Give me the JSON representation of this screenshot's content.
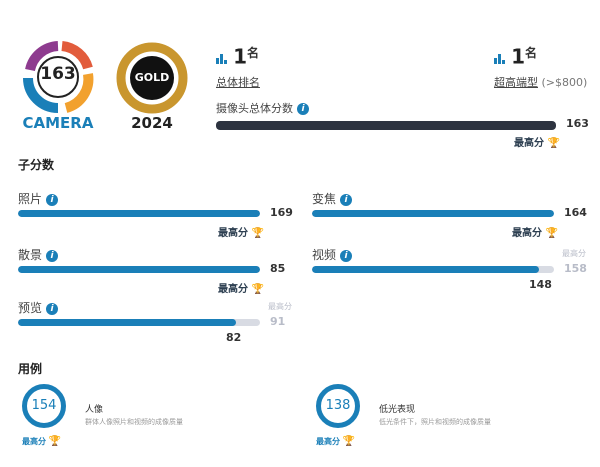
{
  "badge": {
    "score": "163",
    "label": "CAMERA",
    "award": "GOLD",
    "year": "2024"
  },
  "ranks": [
    {
      "rank": "1",
      "suffix": "名",
      "label": "总体排名",
      "extra": ""
    },
    {
      "rank": "1",
      "suffix": "名",
      "label": "超高端型",
      "extra": "(>$800)"
    }
  ],
  "overall": {
    "label": "摄像头总体分数",
    "value": "163",
    "best_label": "最高分",
    "fraction": 1.0
  },
  "subscores_title": "子分数",
  "subscores": [
    {
      "label": "照片",
      "value": "169",
      "best_label": "最高分",
      "fraction": 1.0
    },
    {
      "label": "变焦",
      "value": "164",
      "best_label": "最高分",
      "fraction": 1.0
    },
    {
      "label": "散景",
      "value": "85",
      "best_label": "最高分",
      "fraction": 1.0
    },
    {
      "label": "视频",
      "value": "148",
      "best_label": "最高分",
      "best_value": "158",
      "fraction": 0.937
    },
    {
      "label": "预览",
      "value": "82",
      "best_label": "最高分",
      "best_value": "91",
      "fraction": 0.901
    }
  ],
  "usecases_title": "用例",
  "usecases": [
    {
      "score": "154",
      "title": "人像",
      "desc": "群体人像照片和视频的成像质量",
      "best_label": "最高分"
    },
    {
      "score": "138",
      "title": "低光表现",
      "desc": "低光条件下，照片和视频的成像质量",
      "best_label": "最高分"
    }
  ],
  "colors": {
    "accent": "#1a7fb8",
    "overall_bar": "#2d3340",
    "track": "#d8dbe3",
    "trophy": "#f2b33d"
  }
}
